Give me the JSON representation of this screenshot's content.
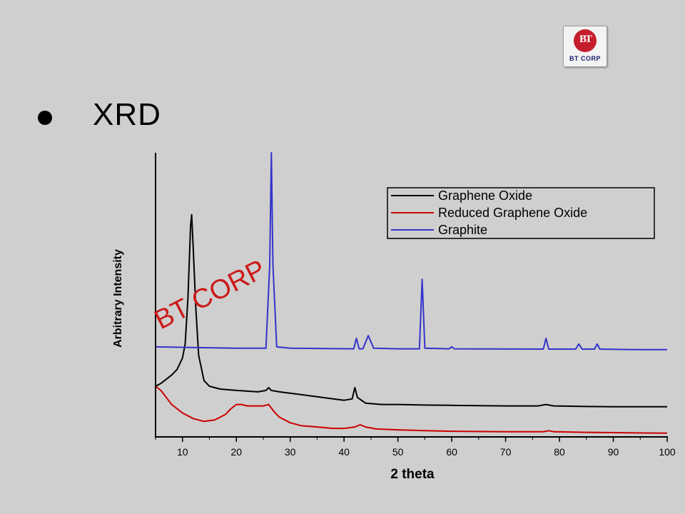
{
  "logo": {
    "letters": "BT",
    "text": "BT CORP",
    "color": "#c41e2c"
  },
  "slide": {
    "bullet_text": "XRD"
  },
  "watermark": "BT CORP",
  "chart_data": {
    "type": "line",
    "xlabel": "2 theta",
    "ylabel": "Arbitrary Intensity",
    "xlim": [
      5,
      100
    ],
    "ylim": [
      0,
      100
    ],
    "x_ticks": [
      10,
      20,
      30,
      40,
      50,
      60,
      70,
      80,
      90,
      100
    ],
    "y_ticks_shown": false,
    "grid": false,
    "legend_position": "top-right",
    "series": [
      {
        "name": "Graphene Oxide",
        "color": "#000000",
        "points": [
          [
            5,
            17
          ],
          [
            6,
            18
          ],
          [
            7,
            19.5
          ],
          [
            8,
            21
          ],
          [
            9,
            23
          ],
          [
            10,
            27
          ],
          [
            10.5,
            32
          ],
          [
            11,
            48
          ],
          [
            11.5,
            74
          ],
          [
            11.7,
            78
          ],
          [
            12,
            66
          ],
          [
            12.5,
            44
          ],
          [
            13,
            28
          ],
          [
            14,
            19
          ],
          [
            15,
            17
          ],
          [
            17,
            16
          ],
          [
            20,
            15.5
          ],
          [
            24,
            15
          ],
          [
            25.5,
            15.5
          ],
          [
            26,
            16.5
          ],
          [
            26.5,
            15.5
          ],
          [
            28,
            15
          ],
          [
            32,
            14
          ],
          [
            36,
            13
          ],
          [
            40,
            12
          ],
          [
            41.5,
            12.5
          ],
          [
            42,
            16.5
          ],
          [
            42.5,
            13
          ],
          [
            44,
            11
          ],
          [
            47,
            10.5
          ],
          [
            50,
            10.5
          ],
          [
            55,
            10.3
          ],
          [
            60,
            10.2
          ],
          [
            70,
            10
          ],
          [
            76,
            10
          ],
          [
            77.5,
            10.5
          ],
          [
            79,
            10
          ],
          [
            85,
            9.8
          ],
          [
            90,
            9.7
          ],
          [
            100,
            9.7
          ]
        ]
      },
      {
        "name": "Reduced Graphene Oxide",
        "color": "#cc0000",
        "points": [
          [
            5,
            17
          ],
          [
            6,
            15.5
          ],
          [
            7,
            13
          ],
          [
            8,
            10.5
          ],
          [
            10,
            7.5
          ],
          [
            12,
            5.5
          ],
          [
            14,
            4.5
          ],
          [
            16,
            5
          ],
          [
            18,
            7
          ],
          [
            19,
            9
          ],
          [
            20,
            10.5
          ],
          [
            21,
            10.5
          ],
          [
            22,
            10
          ],
          [
            23,
            10
          ],
          [
            24,
            10
          ],
          [
            25,
            10
          ],
          [
            26,
            10.5
          ],
          [
            27,
            8
          ],
          [
            28,
            6
          ],
          [
            30,
            4
          ],
          [
            32,
            3
          ],
          [
            35,
            2.5
          ],
          [
            38,
            2
          ],
          [
            40,
            2
          ],
          [
            42,
            2.5
          ],
          [
            43,
            3.3
          ],
          [
            44,
            2.5
          ],
          [
            46,
            1.8
          ],
          [
            50,
            1.5
          ],
          [
            55,
            1.2
          ],
          [
            60,
            1
          ],
          [
            70,
            0.8
          ],
          [
            77,
            0.8
          ],
          [
            78,
            1.2
          ],
          [
            79,
            0.8
          ],
          [
            85,
            0.6
          ],
          [
            90,
            0.5
          ],
          [
            100,
            0.3
          ]
        ]
      },
      {
        "name": "Graphite",
        "color": "#3333cc",
        "points": [
          [
            5,
            31
          ],
          [
            20,
            30.5
          ],
          [
            25.5,
            30.5
          ],
          [
            26.2,
            60
          ],
          [
            26.5,
            100
          ],
          [
            26.8,
            60
          ],
          [
            27.5,
            31
          ],
          [
            30,
            30.5
          ],
          [
            41.8,
            30.3
          ],
          [
            42.3,
            34
          ],
          [
            42.8,
            30.3
          ],
          [
            43.5,
            30.3
          ],
          [
            44.5,
            35
          ],
          [
            45.5,
            30.5
          ],
          [
            50,
            30.3
          ],
          [
            54,
            30.3
          ],
          [
            54.5,
            55
          ],
          [
            55,
            30.5
          ],
          [
            59.5,
            30.3
          ],
          [
            60,
            31
          ],
          [
            60.5,
            30.3
          ],
          [
            77,
            30.2
          ],
          [
            77.5,
            34
          ],
          [
            78,
            30.2
          ],
          [
            83,
            30.2
          ],
          [
            83.6,
            32
          ],
          [
            84.2,
            30.2
          ],
          [
            86.5,
            30.2
          ],
          [
            87,
            32
          ],
          [
            87.5,
            30.2
          ],
          [
            95,
            30
          ],
          [
            100,
            30
          ]
        ]
      }
    ]
  }
}
